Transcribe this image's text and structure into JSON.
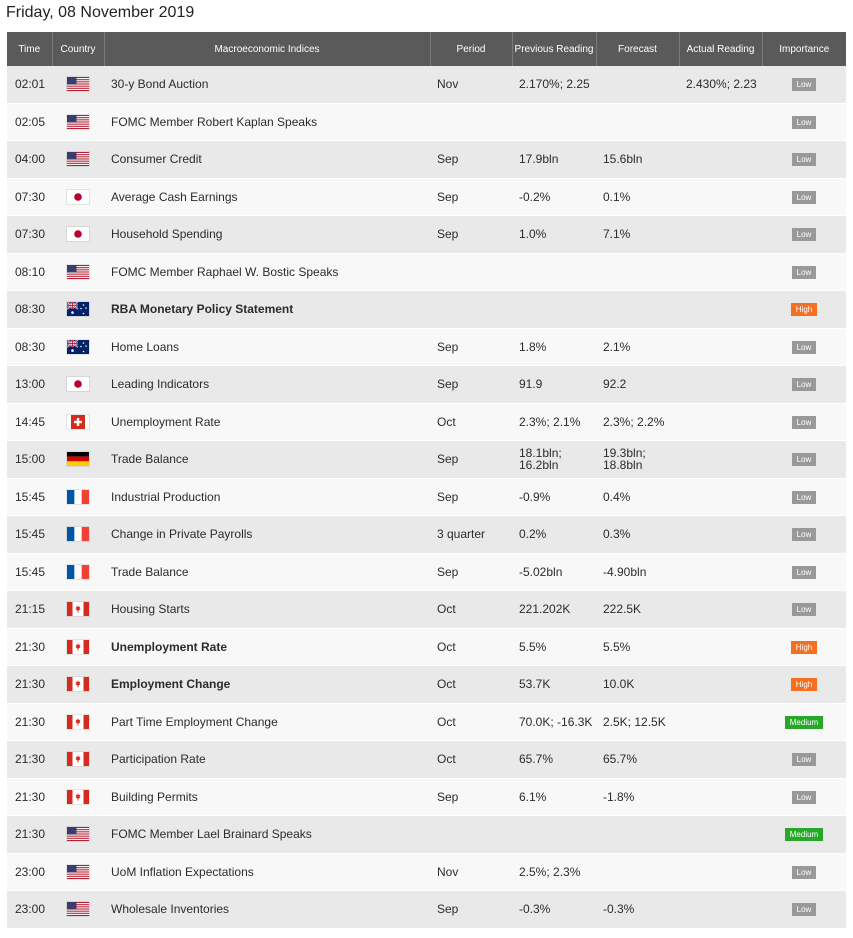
{
  "page_title": "Friday, 08 November 2019",
  "columns": {
    "time": "Time",
    "country": "Country",
    "indices": "Macroeconomic Indices",
    "period": "Period",
    "previous": "Previous Reading",
    "forecast": "Forecast",
    "actual": "Actual Reading",
    "importance": "Importance"
  },
  "colors": {
    "header_bg": "#5a5a5a",
    "row_odd": "#e9e9e9",
    "row_even": "#f8f8f8",
    "low": "#999999",
    "high": "#f36f21",
    "medium": "#28a828"
  },
  "rows": [
    {
      "time": "02:01",
      "country": "us-flag",
      "name": "30-y Bond Auction",
      "period": "Nov",
      "previous": "2.170%; 2.25",
      "forecast": "",
      "actual": "2.430%; 2.23",
      "importance": "Low",
      "bold": false
    },
    {
      "time": "02:05",
      "country": "us-flag",
      "name": "FOMC Member Robert Kaplan Speaks",
      "period": "",
      "previous": "",
      "forecast": "",
      "actual": "",
      "importance": "Low",
      "bold": false
    },
    {
      "time": "04:00",
      "country": "us-flag",
      "name": "Consumer Credit",
      "period": "Sep",
      "previous": "17.9bln",
      "forecast": "15.6bln",
      "actual": "",
      "importance": "Low",
      "bold": false
    },
    {
      "time": "07:30",
      "country": "jp-flag",
      "name": "Average Cash Earnings",
      "period": "Sep",
      "previous": "-0.2%",
      "forecast": "0.1%",
      "actual": "",
      "importance": "Low",
      "bold": false
    },
    {
      "time": "07:30",
      "country": "jp-flag",
      "name": "Household Spending",
      "period": "Sep",
      "previous": "1.0%",
      "forecast": "7.1%",
      "actual": "",
      "importance": "Low",
      "bold": false
    },
    {
      "time": "08:10",
      "country": "us-flag",
      "name": "FOMC Member Raphael W. Bostic Speaks",
      "period": "",
      "previous": "",
      "forecast": "",
      "actual": "",
      "importance": "Low",
      "bold": false
    },
    {
      "time": "08:30",
      "country": "au-flag",
      "name": "RBA Monetary Policy Statement",
      "period": "",
      "previous": "",
      "forecast": "",
      "actual": "",
      "importance": "High",
      "bold": true
    },
    {
      "time": "08:30",
      "country": "au-flag",
      "name": "Home Loans",
      "period": "Sep",
      "previous": "1.8%",
      "forecast": "2.1%",
      "actual": "",
      "importance": "Low",
      "bold": false
    },
    {
      "time": "13:00",
      "country": "jp-flag",
      "name": "Leading Indicators",
      "period": "Sep",
      "previous": "91.9",
      "forecast": "92.2",
      "actual": "",
      "importance": "Low",
      "bold": false
    },
    {
      "time": "14:45",
      "country": "ch-flag",
      "name": "Unemployment Rate",
      "period": "Oct",
      "previous": "2.3%; 2.1%",
      "forecast": "2.3%; 2.2%",
      "actual": "",
      "importance": "Low",
      "bold": false
    },
    {
      "time": "15:00",
      "country": "de-flag",
      "name": "Trade Balance",
      "period": "Sep",
      "previous": "18.1bln; 16.2bln",
      "forecast": "19.3bln; 18.8bln",
      "actual": "",
      "importance": "Low",
      "bold": false
    },
    {
      "time": "15:45",
      "country": "fr-flag",
      "name": "Industrial Production",
      "period": "Sep",
      "previous": "-0.9%",
      "forecast": "0.4%",
      "actual": "",
      "importance": "Low",
      "bold": false
    },
    {
      "time": "15:45",
      "country": "fr-flag",
      "name": "Change in Private Payrolls",
      "period": "3 quarter",
      "previous": "0.2%",
      "forecast": "0.3%",
      "actual": "",
      "importance": "Low",
      "bold": false
    },
    {
      "time": "15:45",
      "country": "fr-flag",
      "name": "Trade Balance",
      "period": "Sep",
      "previous": "-5.02bln",
      "forecast": "-4.90bln",
      "actual": "",
      "importance": "Low",
      "bold": false
    },
    {
      "time": "21:15",
      "country": "ca-flag",
      "name": "Housing Starts",
      "period": "Oct",
      "previous": "221.202K",
      "forecast": "222.5K",
      "actual": "",
      "importance": "Low",
      "bold": false
    },
    {
      "time": "21:30",
      "country": "ca-flag",
      "name": "Unemployment Rate",
      "period": "Oct",
      "previous": "5.5%",
      "forecast": "5.5%",
      "actual": "",
      "importance": "High",
      "bold": true
    },
    {
      "time": "21:30",
      "country": "ca-flag",
      "name": "Employment Change",
      "period": "Oct",
      "previous": "53.7K",
      "forecast": "10.0K",
      "actual": "",
      "importance": "High",
      "bold": true
    },
    {
      "time": "21:30",
      "country": "ca-flag",
      "name": "Part Time Employment Change",
      "period": "Oct",
      "previous": "70.0K; -16.3K",
      "forecast": "2.5K; 12.5K",
      "actual": "",
      "importance": "Medium",
      "bold": false
    },
    {
      "time": "21:30",
      "country": "ca-flag",
      "name": "Participation Rate",
      "period": "Oct",
      "previous": "65.7%",
      "forecast": "65.7%",
      "actual": "",
      "importance": "Low",
      "bold": false
    },
    {
      "time": "21:30",
      "country": "ca-flag",
      "name": "Building Permits",
      "period": "Sep",
      "previous": "6.1%",
      "forecast": "-1.8%",
      "actual": "",
      "importance": "Low",
      "bold": false
    },
    {
      "time": "21:30",
      "country": "us-flag",
      "name": "FOMC Member Lael Brainard Speaks",
      "period": "",
      "previous": "",
      "forecast": "",
      "actual": "",
      "importance": "Medium",
      "bold": false
    },
    {
      "time": "23:00",
      "country": "us-flag",
      "name": "UoM Inflation Expectations",
      "period": "Nov",
      "previous": "2.5%; 2.3%",
      "forecast": "",
      "actual": "",
      "importance": "Low",
      "bold": false
    },
    {
      "time": "23:00",
      "country": "us-flag",
      "name": "Wholesale Inventories",
      "period": "Sep",
      "previous": "-0.3%",
      "forecast": "-0.3%",
      "actual": "",
      "importance": "Low",
      "bold": false
    }
  ]
}
